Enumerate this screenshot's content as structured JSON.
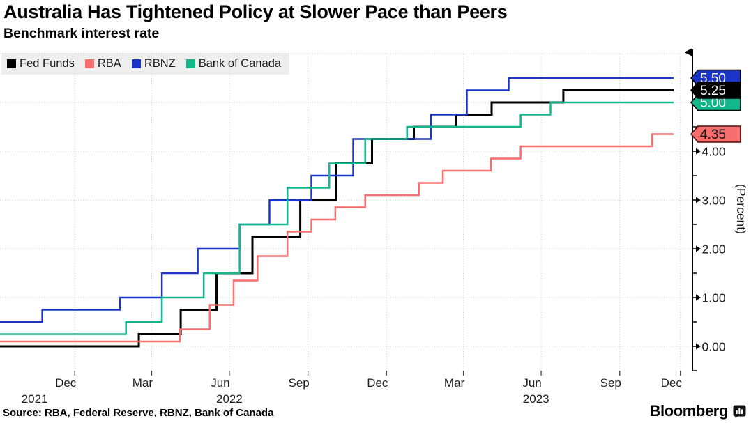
{
  "header": {
    "title": "Australia Has Tightened Policy at Slower Pace than Peers",
    "subtitle": "Benchmark interest rate"
  },
  "legend": {
    "items": [
      {
        "label": "Fed Funds",
        "color": "#000000"
      },
      {
        "label": "RBA",
        "color": "#f66e6e"
      },
      {
        "label": "RBNZ",
        "color": "#1b35c8"
      },
      {
        "label": "Bank of Canada",
        "color": "#12b78b"
      }
    ]
  },
  "chart_data": {
    "type": "line",
    "step": true,
    "title": "Australia Has Tightened Policy at Slower Pace than Peers",
    "subtitle": "Benchmark interest rate",
    "ylabel": "(Percent)",
    "ylim": [
      -0.5,
      6.0
    ],
    "x_domain": [
      "2021-10-01",
      "2023-12-04"
    ],
    "grid": "dotted",
    "legend_position": "top-left",
    "y_major_ticks": [
      {
        "value": 0,
        "label": "0.00"
      },
      {
        "value": 1,
        "label": "1.00"
      },
      {
        "value": 2,
        "label": "2.00"
      },
      {
        "value": 3,
        "label": "3.00"
      },
      {
        "value": 4,
        "label": "4.00"
      }
    ],
    "y_minor_ticks": [
      -0.5,
      0.5,
      1.5,
      2.5,
      3.5,
      4.5
    ],
    "y_gridlines": [
      0,
      1,
      2,
      3,
      4,
      5,
      6
    ],
    "x_ticks": [
      {
        "label": "Dec",
        "date": "2022-01-01"
      },
      {
        "label": "Mar",
        "date": "2022-04-01"
      },
      {
        "label": "Jun",
        "date": "2022-07-01"
      },
      {
        "label": "Sep",
        "date": "2022-10-01"
      },
      {
        "label": "Dec",
        "date": "2023-01-01"
      },
      {
        "label": "Mar",
        "date": "2023-04-01"
      },
      {
        "label": "Jun",
        "date": "2023-07-01"
      },
      {
        "label": "Sep",
        "date": "2023-10-01"
      },
      {
        "label": "Dec",
        "date": "2023-12-11"
      }
    ],
    "year_labels": [
      {
        "label": "2021",
        "date": "2021-11-15"
      },
      {
        "label": "2022",
        "date": "2022-07-01"
      },
      {
        "label": "2023",
        "date": "2023-06-25"
      }
    ],
    "series": [
      {
        "name": "Fed Funds",
        "color": "#000000",
        "width": 3,
        "points": [
          [
            "2021-10-01",
            0.0
          ],
          [
            "2022-03-17",
            0.25
          ],
          [
            "2022-05-05",
            0.75
          ],
          [
            "2022-06-16",
            1.5
          ],
          [
            "2022-07-28",
            2.25
          ],
          [
            "2022-09-22",
            3.0
          ],
          [
            "2022-11-03",
            3.75
          ],
          [
            "2022-12-15",
            4.25
          ],
          [
            "2023-02-02",
            4.5
          ],
          [
            "2023-03-23",
            4.75
          ],
          [
            "2023-05-04",
            5.0
          ],
          [
            "2023-07-27",
            5.25
          ]
        ]
      },
      {
        "name": "RBA",
        "color": "#f66e6e",
        "width": 2.5,
        "points": [
          [
            "2021-10-01",
            0.1
          ],
          [
            "2022-05-04",
            0.35
          ],
          [
            "2022-06-08",
            0.85
          ],
          [
            "2022-07-06",
            1.35
          ],
          [
            "2022-08-03",
            1.85
          ],
          [
            "2022-09-07",
            2.35
          ],
          [
            "2022-10-05",
            2.6
          ],
          [
            "2022-11-02",
            2.85
          ],
          [
            "2022-12-07",
            3.1
          ],
          [
            "2023-02-08",
            3.35
          ],
          [
            "2023-03-08",
            3.6
          ],
          [
            "2023-05-03",
            3.85
          ],
          [
            "2023-06-07",
            4.1
          ],
          [
            "2023-11-08",
            4.35
          ]
        ]
      },
      {
        "name": "RBNZ",
        "color": "#1b35c8",
        "width": 2.5,
        "points": [
          [
            "2021-10-01",
            0.5
          ],
          [
            "2021-11-24",
            0.75
          ],
          [
            "2022-02-23",
            1.0
          ],
          [
            "2022-04-13",
            1.5
          ],
          [
            "2022-05-25",
            2.0
          ],
          [
            "2022-07-13",
            2.5
          ],
          [
            "2022-08-17",
            3.0
          ],
          [
            "2022-10-05",
            3.5
          ],
          [
            "2022-11-23",
            4.25
          ],
          [
            "2023-02-22",
            4.75
          ],
          [
            "2023-04-05",
            5.25
          ],
          [
            "2023-05-24",
            5.5
          ]
        ]
      },
      {
        "name": "Bank of Canada",
        "color": "#12b78b",
        "width": 2.5,
        "points": [
          [
            "2021-10-01",
            0.25
          ],
          [
            "2022-03-02",
            0.5
          ],
          [
            "2022-04-13",
            1.0
          ],
          [
            "2022-06-01",
            1.5
          ],
          [
            "2022-07-13",
            2.5
          ],
          [
            "2022-09-07",
            3.25
          ],
          [
            "2022-10-26",
            3.75
          ],
          [
            "2022-12-07",
            4.25
          ],
          [
            "2023-01-25",
            4.5
          ],
          [
            "2023-06-07",
            4.75
          ],
          [
            "2023-07-12",
            5.0
          ]
        ]
      }
    ],
    "end_labels": [
      {
        "series": "RBNZ",
        "label": "5.50",
        "value": 5.5,
        "bg": "#1b35c8",
        "text_color": "#ffffff",
        "border": "#000000"
      },
      {
        "series": "Bank of Canada",
        "label": "5.00",
        "value": 5.0,
        "bg": "#12b78b",
        "text_color": "#ffffff",
        "border": "#000000"
      },
      {
        "series": "Fed Funds",
        "label": "5.25",
        "value": 5.25,
        "bg": "#000000",
        "text_color": "#ffffff",
        "border": "#000000"
      },
      {
        "series": "RBA",
        "label": "4.35",
        "value": 4.35,
        "bg": "#f66e6e",
        "text_color": "#111111",
        "border": "#4a0d0d"
      }
    ]
  },
  "footer": {
    "source": "Source: RBA, Federal Reserve, RBNZ, Bank of Canada",
    "brand": "Bloomberg"
  }
}
